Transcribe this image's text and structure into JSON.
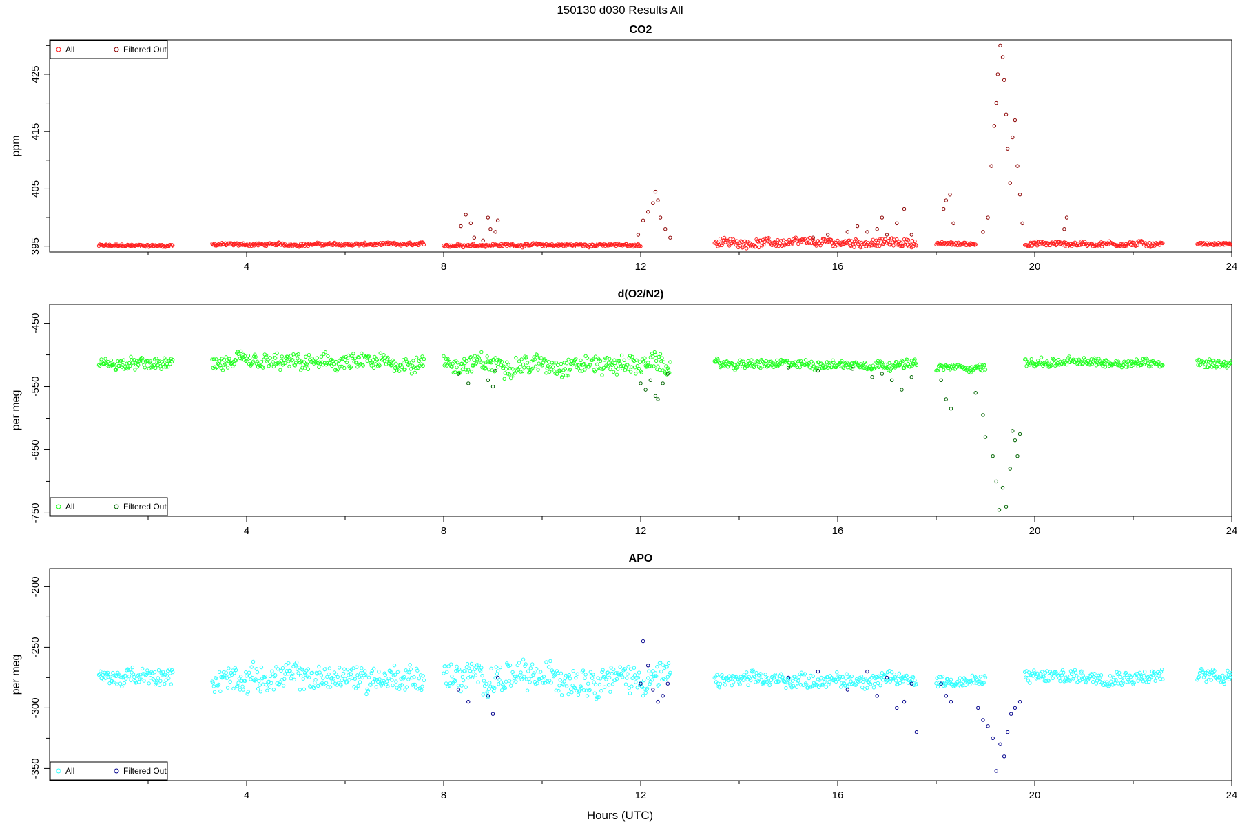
{
  "figure": {
    "title": "150130   d030   Results All",
    "xlabel": "Hours (UTC)"
  },
  "chart_data": [
    {
      "type": "scatter",
      "title": "CO2",
      "ylabel": "ppm",
      "xlim": [
        0,
        24
      ],
      "ylim": [
        394,
        431
      ],
      "xticks": [
        4,
        8,
        12,
        16,
        20,
        24
      ],
      "yticks": [
        395,
        405,
        415,
        425
      ],
      "legend": {
        "placement": "top-left",
        "entries": [
          "All",
          "Filtered Out"
        ]
      },
      "colors": {
        "all": "#ff2020",
        "filtered": "#8b0000"
      },
      "series": [
        {
          "name": "All",
          "segments": [
            {
              "x": [
                1.0,
                2.5
              ],
              "y": 395.1,
              "spread": 0.4
            },
            {
              "x": [
                3.3,
                7.6
              ],
              "y": 395.3,
              "spread": 0.5
            },
            {
              "x": [
                8.0,
                12.0
              ],
              "y": 395.2,
              "spread": 0.5
            },
            {
              "x": [
                13.5,
                17.6
              ],
              "y": 395.6,
              "spread": 1.2
            },
            {
              "x": [
                18.0,
                18.8
              ],
              "y": 395.4,
              "spread": 0.5
            },
            {
              "x": [
                19.8,
                22.6
              ],
              "y": 395.4,
              "spread": 0.8
            },
            {
              "x": [
                23.3,
                24.0
              ],
              "y": 395.4,
              "spread": 0.4
            }
          ]
        },
        {
          "name": "Filtered Out",
          "points": [
            [
              8.35,
              398.5
            ],
            [
              8.45,
              400.5
            ],
            [
              8.55,
              399.0
            ],
            [
              8.62,
              396.5
            ],
            [
              8.8,
              396.0
            ],
            [
              8.9,
              400.0
            ],
            [
              8.95,
              398.0
            ],
            [
              9.05,
              397.5
            ],
            [
              9.1,
              399.5
            ],
            [
              11.95,
              397.0
            ],
            [
              12.05,
              399.5
            ],
            [
              12.15,
              401.0
            ],
            [
              12.25,
              402.5
            ],
            [
              12.3,
              404.5
            ],
            [
              12.35,
              403.0
            ],
            [
              12.4,
              400.0
            ],
            [
              12.5,
              398.0
            ],
            [
              12.6,
              396.5
            ],
            [
              15.5,
              396.5
            ],
            [
              15.8,
              397.0
            ],
            [
              16.2,
              397.5
            ],
            [
              16.4,
              398.5
            ],
            [
              16.6,
              397.5
            ],
            [
              16.8,
              398.0
            ],
            [
              16.9,
              400.0
            ],
            [
              17.0,
              397.0
            ],
            [
              17.2,
              399.0
            ],
            [
              17.35,
              401.5
            ],
            [
              17.5,
              397.0
            ],
            [
              18.15,
              401.5
            ],
            [
              18.2,
              403.0
            ],
            [
              18.28,
              404.0
            ],
            [
              18.35,
              399.0
            ],
            [
              18.95,
              397.5
            ],
            [
              19.05,
              400.0
            ],
            [
              19.12,
              409.0
            ],
            [
              19.18,
              416.0
            ],
            [
              19.22,
              420.0
            ],
            [
              19.25,
              425.0
            ],
            [
              19.3,
              430.0
            ],
            [
              19.35,
              428.0
            ],
            [
              19.38,
              424.0
            ],
            [
              19.42,
              418.0
            ],
            [
              19.45,
              412.0
            ],
            [
              19.5,
              406.0
            ],
            [
              19.55,
              414.0
            ],
            [
              19.6,
              417.0
            ],
            [
              19.65,
              409.0
            ],
            [
              19.7,
              404.0
            ],
            [
              19.75,
              399.0
            ],
            [
              20.6,
              398.0
            ],
            [
              20.65,
              400.0
            ]
          ]
        }
      ]
    },
    {
      "type": "scatter",
      "title": "d(O2/N2)",
      "ylabel": "per meg",
      "xlim": [
        0,
        24
      ],
      "ylim": [
        -755,
        -420
      ],
      "xticks": [
        4,
        8,
        12,
        16,
        20,
        24
      ],
      "yticks": [
        -450,
        -550,
        -650,
        -750
      ],
      "legend": {
        "placement": "bottom-left",
        "entries": [
          "All",
          "Filtered Out"
        ]
      },
      "colors": {
        "all": "#20ff20",
        "filtered": "#006400"
      },
      "series": [
        {
          "name": "All",
          "segments": [
            {
              "x": [
                1.0,
                2.5
              ],
              "y": -515,
              "spread": 15
            },
            {
              "x": [
                3.3,
                7.6
              ],
              "y": -513,
              "spread": 22
            },
            {
              "x": [
                8.0,
                12.6
              ],
              "y": -515,
              "spread": 25
            },
            {
              "x": [
                13.5,
                17.6
              ],
              "y": -515,
              "spread": 12
            },
            {
              "x": [
                18.0,
                19.0
              ],
              "y": -520,
              "spread": 10
            },
            {
              "x": [
                19.8,
                22.6
              ],
              "y": -512,
              "spread": 12
            },
            {
              "x": [
                23.3,
                24.0
              ],
              "y": -513,
              "spread": 12
            }
          ]
        },
        {
          "name": "Filtered Out",
          "points": [
            [
              8.3,
              -530
            ],
            [
              8.5,
              -545
            ],
            [
              8.9,
              -540
            ],
            [
              9.0,
              -550
            ],
            [
              9.05,
              -525
            ],
            [
              12.0,
              -545
            ],
            [
              12.1,
              -555
            ],
            [
              12.2,
              -540
            ],
            [
              12.3,
              -565
            ],
            [
              12.35,
              -570
            ],
            [
              12.45,
              -545
            ],
            [
              12.55,
              -530
            ],
            [
              15.0,
              -520
            ],
            [
              15.6,
              -525
            ],
            [
              16.3,
              -522
            ],
            [
              16.7,
              -535
            ],
            [
              16.9,
              -530
            ],
            [
              17.1,
              -540
            ],
            [
              17.3,
              -555
            ],
            [
              17.5,
              -535
            ],
            [
              18.1,
              -540
            ],
            [
              18.2,
              -570
            ],
            [
              18.3,
              -585
            ],
            [
              18.8,
              -560
            ],
            [
              18.95,
              -595
            ],
            [
              19.0,
              -630
            ],
            [
              19.15,
              -660
            ],
            [
              19.22,
              -700
            ],
            [
              19.28,
              -745
            ],
            [
              19.35,
              -710
            ],
            [
              19.42,
              -740
            ],
            [
              19.5,
              -680
            ],
            [
              19.55,
              -620
            ],
            [
              19.6,
              -635
            ],
            [
              19.65,
              -660
            ],
            [
              19.7,
              -625
            ]
          ]
        }
      ]
    },
    {
      "type": "scatter",
      "title": "APO",
      "ylabel": "per meg",
      "xlim": [
        0,
        24
      ],
      "ylim": [
        -360,
        -185
      ],
      "xticks": [
        4,
        8,
        12,
        16,
        20,
        24
      ],
      "yticks": [
        -200,
        -250,
        -300,
        -350
      ],
      "legend": {
        "placement": "bottom-left",
        "entries": [
          "All",
          "Filtered Out"
        ]
      },
      "colors": {
        "all": "#30ffff",
        "filtered": "#00008b"
      },
      "series": [
        {
          "name": "All",
          "segments": [
            {
              "x": [
                1.0,
                2.5
              ],
              "y": -275,
              "spread": 12
            },
            {
              "x": [
                3.3,
                7.6
              ],
              "y": -275,
              "spread": 18
            },
            {
              "x": [
                8.0,
                12.6
              ],
              "y": -275,
              "spread": 20
            },
            {
              "x": [
                13.5,
                17.6
              ],
              "y": -277,
              "spread": 10
            },
            {
              "x": [
                18.0,
                19.0
              ],
              "y": -278,
              "spread": 8
            },
            {
              "x": [
                19.8,
                22.6
              ],
              "y": -274,
              "spread": 10
            },
            {
              "x": [
                23.3,
                24.0
              ],
              "y": -273,
              "spread": 10
            }
          ]
        },
        {
          "name": "Filtered Out",
          "points": [
            [
              8.3,
              -285
            ],
            [
              8.5,
              -295
            ],
            [
              8.9,
              -290
            ],
            [
              9.0,
              -305
            ],
            [
              9.1,
              -275
            ],
            [
              12.0,
              -280
            ],
            [
              12.05,
              -245
            ],
            [
              12.15,
              -265
            ],
            [
              12.25,
              -285
            ],
            [
              12.35,
              -295
            ],
            [
              12.45,
              -290
            ],
            [
              12.55,
              -280
            ],
            [
              15.0,
              -275
            ],
            [
              15.6,
              -270
            ],
            [
              16.2,
              -285
            ],
            [
              16.6,
              -270
            ],
            [
              16.8,
              -290
            ],
            [
              17.0,
              -275
            ],
            [
              17.2,
              -300
            ],
            [
              17.35,
              -295
            ],
            [
              17.5,
              -280
            ],
            [
              17.6,
              -320
            ],
            [
              18.1,
              -280
            ],
            [
              18.2,
              -290
            ],
            [
              18.3,
              -295
            ],
            [
              18.85,
              -300
            ],
            [
              18.95,
              -310
            ],
            [
              19.05,
              -315
            ],
            [
              19.15,
              -325
            ],
            [
              19.22,
              -352
            ],
            [
              19.3,
              -330
            ],
            [
              19.38,
              -340
            ],
            [
              19.45,
              -320
            ],
            [
              19.52,
              -305
            ],
            [
              19.6,
              -300
            ],
            [
              19.7,
              -295
            ]
          ]
        }
      ]
    }
  ]
}
